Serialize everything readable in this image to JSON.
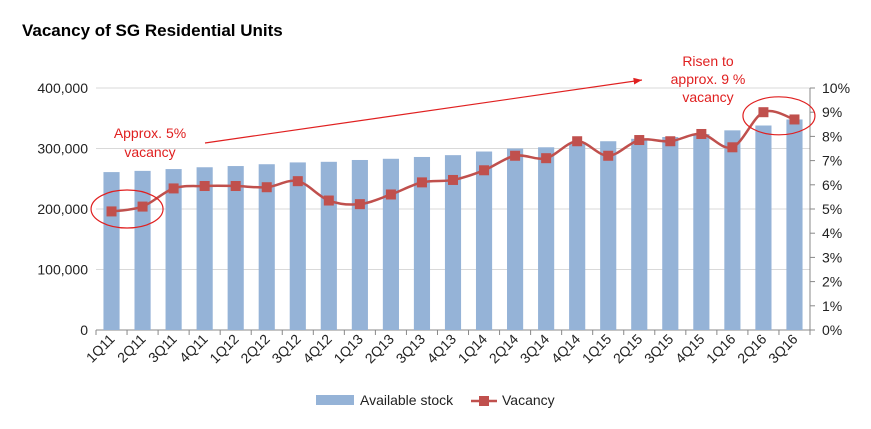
{
  "chart_data": {
    "type": "bar",
    "title": "Vacancy of SG Residential Units",
    "categories": [
      "1Q11",
      "2Q11",
      "3Q11",
      "4Q11",
      "1Q12",
      "2Q12",
      "3Q12",
      "4Q12",
      "1Q13",
      "2Q13",
      "3Q13",
      "4Q13",
      "1Q14",
      "2Q14",
      "3Q14",
      "4Q14",
      "1Q15",
      "2Q15",
      "3Q15",
      "4Q15",
      "1Q16",
      "2Q16",
      "3Q16"
    ],
    "series": [
      {
        "name": "Available stock",
        "type": "bar",
        "axis": "left",
        "color": "#95b3d7",
        "values": [
          261000,
          263000,
          266000,
          269000,
          271000,
          274000,
          277000,
          278000,
          281000,
          283000,
          286000,
          289000,
          295000,
          300000,
          302000,
          308000,
          312000,
          316000,
          319000,
          324000,
          330000,
          338000,
          348000
        ]
      },
      {
        "name": "Vacancy",
        "type": "line",
        "axis": "right",
        "color": "#c0504d",
        "values": [
          4.9,
          5.1,
          5.85,
          5.95,
          5.95,
          5.9,
          6.15,
          5.35,
          5.2,
          5.6,
          6.1,
          6.2,
          6.6,
          7.2,
          7.1,
          7.8,
          7.2,
          7.85,
          7.8,
          8.1,
          7.55,
          9.0,
          8.7
        ]
      }
    ],
    "y_left": {
      "min": 0,
      "max": 400000,
      "ticks": [
        "0",
        "100,000",
        "200,000",
        "300,000",
        "400,000"
      ]
    },
    "y_right": {
      "min": 0,
      "max": 10,
      "ticks": [
        "0%",
        "1%",
        "2%",
        "3%",
        "4%",
        "5%",
        "6%",
        "7%",
        "8%",
        "9%",
        "10%"
      ]
    },
    "gridlines": true,
    "legend_position": "bottom",
    "annotations": [
      {
        "lines": [
          "Approx. 5%",
          "vacancy"
        ],
        "color": "#e02020"
      },
      {
        "lines": [
          "Risen to",
          "approx. 9 %",
          "vacancy"
        ],
        "color": "#e02020"
      }
    ]
  }
}
